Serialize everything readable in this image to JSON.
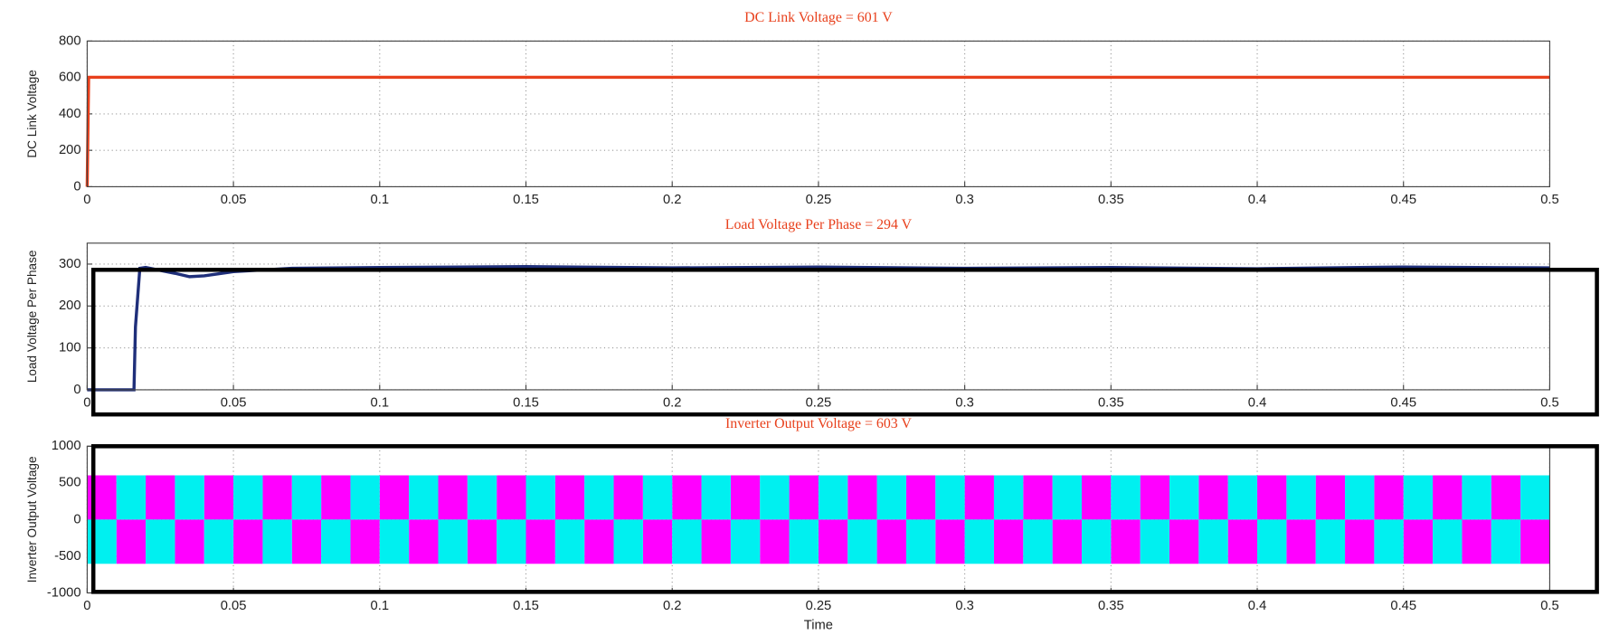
{
  "chart_data": [
    {
      "type": "line",
      "title": "DC Link Voltage = 601 V",
      "ylabel": "DC Link Voltage",
      "x": [
        0,
        0.0005,
        0.5
      ],
      "series": [
        {
          "color": "#e8401c",
          "values": [
            0,
            601,
            601
          ]
        }
      ],
      "xlim": [
        0,
        0.5
      ],
      "xticks": [
        0,
        0.05,
        0.1,
        0.15,
        0.2,
        0.25,
        0.3,
        0.35,
        0.4,
        0.45,
        0.5
      ],
      "ylim": [
        0,
        800
      ],
      "yticks": [
        0,
        200,
        400,
        600,
        800
      ],
      "grid": true,
      "title_color": "#e8401c"
    },
    {
      "type": "line",
      "title": "Load Voltage Per Phase = 294 V",
      "ylabel": "Load Voltage Per Phase",
      "x": [
        0,
        0.016,
        0.0165,
        0.018,
        0.02,
        0.03,
        0.035,
        0.04,
        0.05,
        0.07,
        0.1,
        0.15,
        0.2,
        0.25,
        0.3,
        0.35,
        0.4,
        0.45,
        0.5
      ],
      "series": [
        {
          "color": "#1f2f7a",
          "values": [
            0,
            0,
            150,
            290,
            292,
            278,
            270,
            272,
            282,
            290,
            292,
            294,
            291,
            293,
            290,
            292,
            289,
            293,
            291
          ]
        }
      ],
      "xlim": [
        0,
        0.5
      ],
      "xticks": [
        0,
        0.05,
        0.1,
        0.15,
        0.2,
        0.25,
        0.3,
        0.35,
        0.4,
        0.45,
        0.5
      ],
      "ylim": [
        0,
        350
      ],
      "yticks": [
        0,
        100,
        200,
        300
      ],
      "grid": true,
      "title_color": "#e8401c"
    },
    {
      "type": "step",
      "title": "Inverter Output Voltage = 603 V",
      "ylabel": "Inverter Output Voltage",
      "xlabel": "Time",
      "x": [
        0,
        0.01,
        0.02,
        0.03,
        0.04,
        0.05,
        0.06,
        0.07,
        0.08,
        0.09,
        0.1,
        0.11,
        0.12,
        0.13,
        0.14,
        0.15,
        0.16,
        0.17,
        0.18,
        0.19,
        0.2,
        0.21,
        0.22,
        0.23,
        0.24,
        0.25,
        0.26,
        0.27,
        0.28,
        0.29,
        0.3,
        0.31,
        0.32,
        0.33,
        0.34,
        0.35,
        0.36,
        0.37,
        0.38,
        0.39,
        0.4,
        0.41,
        0.42,
        0.43,
        0.44,
        0.45,
        0.46,
        0.47,
        0.48,
        0.49
      ],
      "series": [
        {
          "color": "#ff00ff",
          "values": [
            603,
            -603,
            603,
            -603,
            603,
            -603,
            603,
            -603,
            603,
            -603,
            603,
            -603,
            603,
            -603,
            603,
            -603,
            603,
            -603,
            603,
            -603,
            603,
            -603,
            603,
            -603,
            603,
            -603,
            603,
            -603,
            603,
            -603,
            603,
            -603,
            603,
            -603,
            603,
            -603,
            603,
            -603,
            603,
            -603,
            603,
            -603,
            603,
            -603,
            603,
            -603,
            603,
            -603,
            603,
            -603
          ]
        },
        {
          "color": "#00f0f0",
          "values": [
            -603,
            603,
            -603,
            603,
            -603,
            603,
            -603,
            603,
            -603,
            603,
            -603,
            603,
            -603,
            603,
            -603,
            603,
            -603,
            603,
            -603,
            603,
            -603,
            603,
            -603,
            603,
            -603,
            603,
            -603,
            603,
            -603,
            603,
            -603,
            603,
            -603,
            603,
            -603,
            603,
            -603,
            603,
            -603,
            603,
            -603,
            603,
            -603,
            603,
            -603,
            603,
            -603,
            603,
            -603,
            603
          ]
        }
      ],
      "xlim": [
        0,
        0.5
      ],
      "xticks": [
        0,
        0.05,
        0.1,
        0.15,
        0.2,
        0.25,
        0.3,
        0.35,
        0.4,
        0.45,
        0.5
      ],
      "ylim": [
        -1000,
        1000
      ],
      "yticks": [
        -1000,
        -500,
        0,
        500,
        1000
      ],
      "grid": true,
      "title_color": "#e8401c"
    }
  ]
}
